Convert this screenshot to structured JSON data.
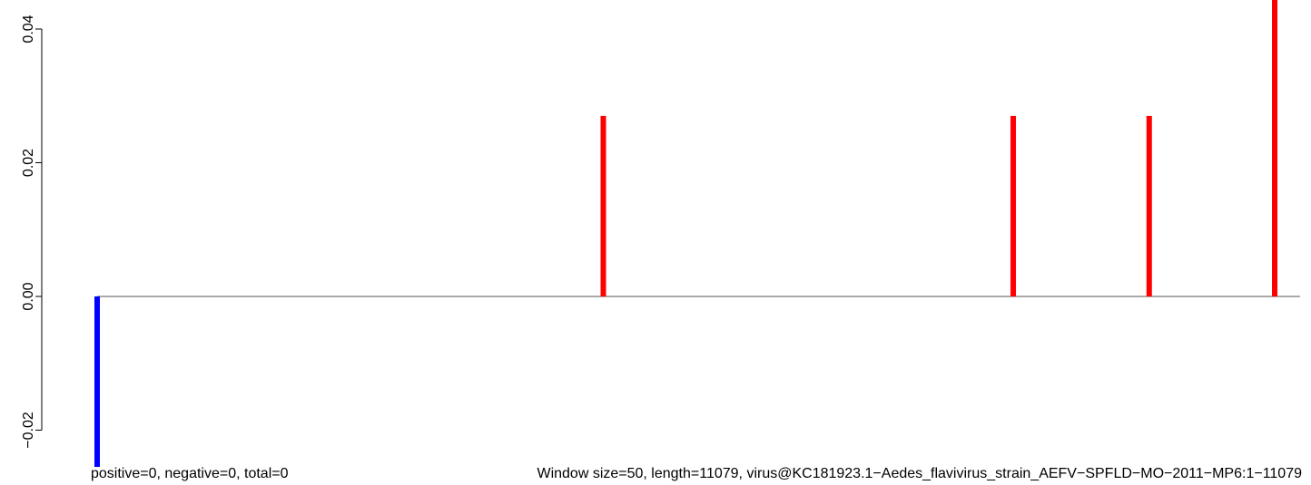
{
  "chart_data": {
    "type": "bar",
    "title": "",
    "xlabel": "",
    "ylabel": "",
    "ylim": [
      -0.0255,
      0.0444
    ],
    "xlim": [
      0,
      11079
    ],
    "yticks": [
      "-0.02",
      "0.00",
      "0.02",
      "0.04"
    ],
    "y_tick_values": [
      -0.02,
      0.0,
      0.02,
      0.04
    ],
    "grid": false,
    "legend": "none",
    "bars": [
      {
        "x": 0,
        "value": -0.0255,
        "color": "#0000ff"
      },
      {
        "x": 4840,
        "value": 0.027,
        "color": "#ff0000"
      },
      {
        "x": 8760,
        "value": 0.027,
        "color": "#ff0000"
      },
      {
        "x": 10060,
        "value": 0.027,
        "color": "#ff0000"
      },
      {
        "x": 11260,
        "value": 0.0444,
        "color": "#ff0000"
      }
    ],
    "caption_left": "positive=0, negative=0, total=0",
    "caption_right": "Window size=50, length=11079, virus@KC181923.1−Aedes_flavivirus_strain_AEFV−SPFLD−MO−2011−MP6:1−11079"
  }
}
